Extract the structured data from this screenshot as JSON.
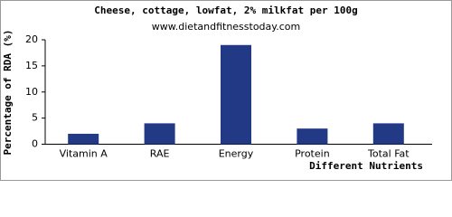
{
  "chart_data": {
    "type": "bar",
    "title": "Cheese, cottage, lowfat, 2% milkfat per 100g",
    "subtitle": "www.dietandfitnesstoday.com",
    "x_label": "Different Nutrients",
    "y_label": "Percentage of RDA (%)",
    "categories": [
      "Vitamin A",
      "RAE",
      "Energy",
      "Protein",
      "Total Fat"
    ],
    "values": [
      2,
      4,
      19,
      3,
      4
    ],
    "color": "#223a86",
    "ylim": [
      0,
      20
    ],
    "yticks": [
      0,
      5,
      10,
      15,
      20
    ],
    "grid": false
  }
}
